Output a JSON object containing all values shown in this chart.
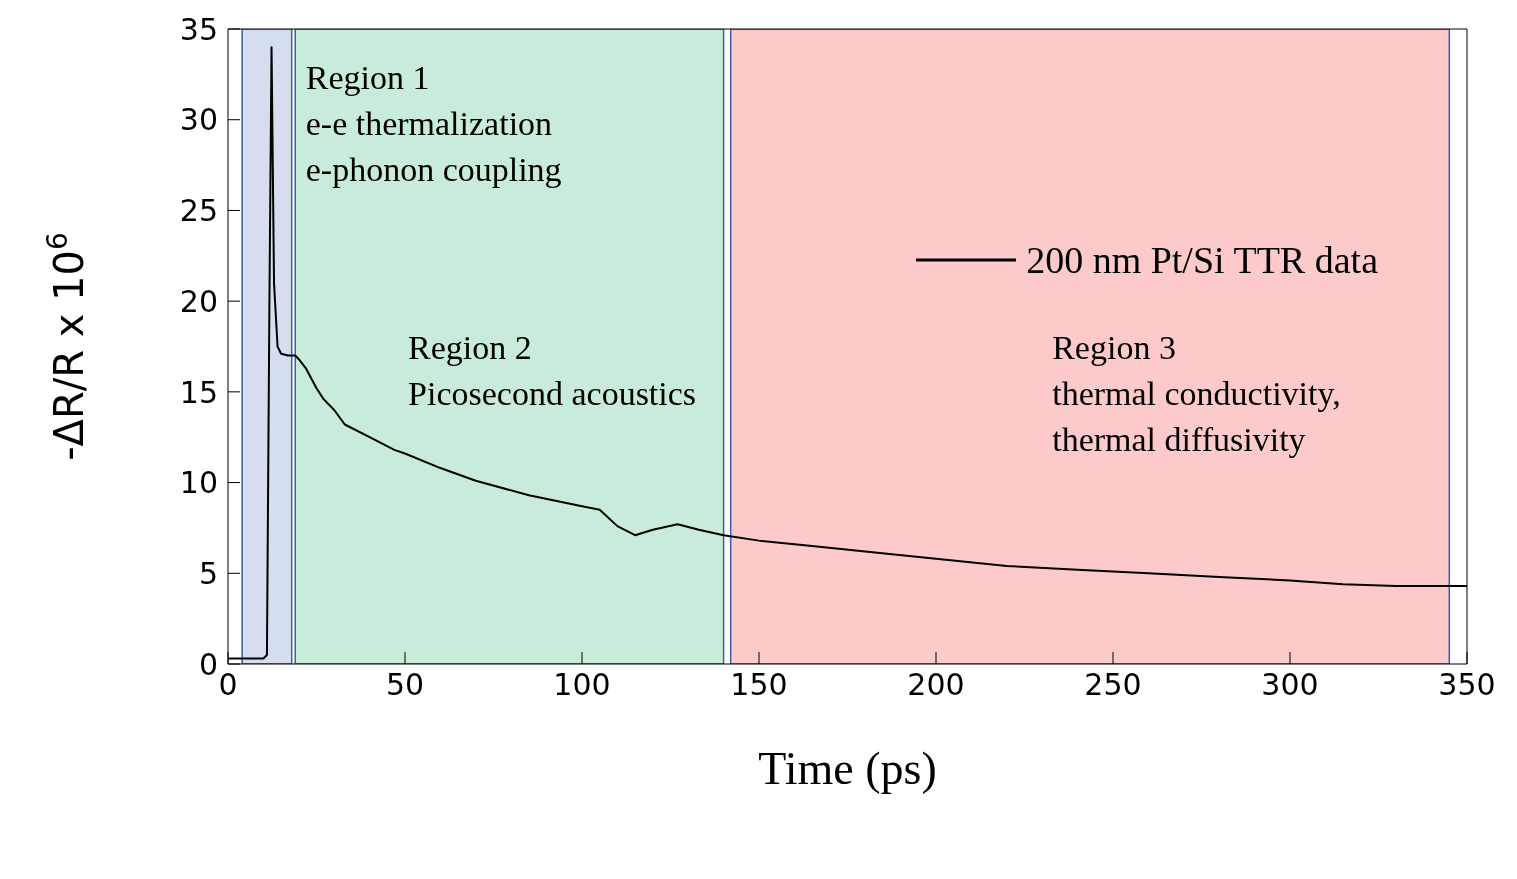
{
  "chart_data": {
    "type": "line",
    "xlabel": "Time (ps)",
    "ylabel": "-ΔR/R x 10$^{6}$",
    "x": [
      0,
      5,
      10,
      11,
      11.7,
      12.3,
      13,
      14,
      15,
      17,
      19,
      20,
      22,
      25,
      27,
      30,
      33,
      40,
      47,
      50,
      60,
      70,
      85,
      100,
      105,
      110,
      115,
      120,
      127,
      133,
      140,
      150,
      165,
      180,
      200,
      220,
      240,
      250,
      260,
      280,
      300,
      315,
      330,
      350
    ],
    "series": [
      {
        "name": "200 nm Pt/Si TTR data",
        "color": "#000000",
        "values": [
          0.3,
          0.3,
          0.3,
          0.5,
          20,
          34,
          21,
          17.5,
          17.1,
          17,
          17,
          16.8,
          16.3,
          15.2,
          14.6,
          14,
          13.2,
          12.5,
          11.8,
          11.6,
          10.8,
          10.1,
          9.3,
          8.7,
          8.5,
          7.6,
          7.1,
          7.4,
          7.7,
          7.4,
          7.1,
          6.8,
          6.5,
          6.2,
          5.8,
          5.4,
          5.2,
          5.1,
          5,
          4.8,
          4.6,
          4.4,
          4.3,
          4.3
        ]
      }
    ],
    "xlim": [
      0,
      350
    ],
    "xticks": [
      0,
      50,
      100,
      150,
      200,
      250,
      300,
      350
    ],
    "ylim": [
      0,
      35
    ],
    "yticks": [
      0,
      5,
      10,
      15,
      20,
      25,
      30,
      35
    ],
    "legend": "top right",
    "marker": "none",
    "line_style": "solid",
    "bands": [
      {
        "axis": "x",
        "from": 4,
        "to": 18,
        "label": "Region 1\ne-e thermalization\ne-phonon coupling",
        "color": "#d5ddf0"
      },
      {
        "axis": "x",
        "from": 19,
        "to": 140,
        "label": "Region 2\nPicosecond acoustics",
        "color": "#c8ecd9"
      },
      {
        "axis": "x",
        "from": 142,
        "to": 345,
        "label": "Region 3\nthermal conductivity,\nthermal diffusivity",
        "color": "#fccaca"
      }
    ]
  }
}
